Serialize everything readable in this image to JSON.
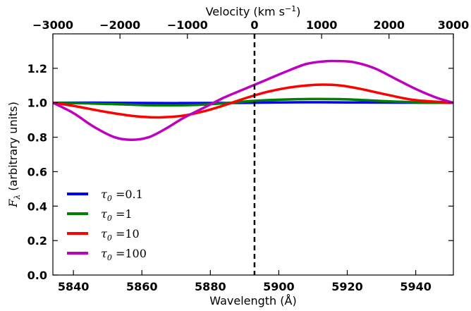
{
  "chart_data": {
    "type": "line",
    "xlabel": "Wavelength (Å)",
    "ylabel_main": "F",
    "ylabel_sub": "λ",
    "ylabel_rest": " (arbitrary units)",
    "top_xlabel": "Velocity (km s",
    "top_xlabel_sup": "−1",
    "top_xlabel_end": ")",
    "xlim": [
      5834,
      5951
    ],
    "ylim": [
      0.0,
      1.4
    ],
    "xticks": [
      "5840",
      "5860",
      "5880",
      "5900",
      "5920",
      "5940"
    ],
    "xtick_values": [
      5840,
      5860,
      5880,
      5900,
      5920,
      5940
    ],
    "yticks": [
      "0.0",
      "0.2",
      "0.4",
      "0.6",
      "0.8",
      "1.0",
      "1.2"
    ],
    "ytick_values": [
      0.0,
      0.2,
      0.4,
      0.6,
      0.8,
      1.0,
      1.2
    ],
    "top_ticks": [
      "−3000",
      "−2000",
      "−1000",
      "0",
      "1000",
      "2000",
      "3000"
    ],
    "top_tick_values": [
      -3000,
      -2000,
      -1000,
      0,
      1000,
      2000,
      3000
    ],
    "top_tick_wavelengths": [
      5834.0,
      5853.6,
      5873.3,
      5892.9,
      5912.5,
      5932.2,
      5951.8
    ],
    "rest_wavelength": 5892.9,
    "vline_style": "dashed",
    "legend_position": "lower-left",
    "series": [
      {
        "name": "τ₀ = 0.1",
        "legend_sub": "0",
        "legend_value": "0.1",
        "color": "#0000ff",
        "x": [
          5834,
          5850,
          5870,
          5884,
          5892,
          5900,
          5910,
          5920,
          5935,
          5951
        ],
        "y": [
          1.0,
          1.0,
          0.998,
          0.999,
          1.0,
          1.002,
          1.003,
          1.002,
          1.001,
          1.0
        ]
      },
      {
        "name": "τ₀ = 1",
        "legend_sub": "0",
        "legend_value": "1",
        "color": "#008000",
        "x": [
          5834,
          5845,
          5855,
          5865,
          5875,
          5884,
          5892,
          5900,
          5910,
          5920,
          5930,
          5940,
          5951
        ],
        "y": [
          1.0,
          0.996,
          0.99,
          0.985,
          0.987,
          0.997,
          1.01,
          1.018,
          1.022,
          1.02,
          1.01,
          1.003,
          1.0
        ]
      },
      {
        "name": "τ₀ = 10",
        "legend_sub": "0",
        "legend_value": "10",
        "color": "#ff0000",
        "x": [
          5834,
          5840,
          5850,
          5858,
          5865,
          5872,
          5878,
          5884,
          5890,
          5896,
          5902,
          5908,
          5913,
          5918,
          5924,
          5932,
          5940,
          5951
        ],
        "y": [
          1.0,
          0.982,
          0.945,
          0.922,
          0.915,
          0.925,
          0.95,
          0.985,
          1.025,
          1.06,
          1.085,
          1.1,
          1.105,
          1.1,
          1.08,
          1.045,
          1.015,
          1.0
        ]
      },
      {
        "name": "τ₀ = 100",
        "legend_sub": "0",
        "legend_value": "100",
        "color": "#bf00bf",
        "x": [
          5834,
          5840,
          5846,
          5852,
          5857,
          5862,
          5867,
          5872,
          5878,
          5884,
          5890,
          5896,
          5902,
          5908,
          5913,
          5917,
          5922,
          5928,
          5934,
          5940,
          5946,
          5951
        ],
        "y": [
          1.0,
          0.94,
          0.86,
          0.8,
          0.785,
          0.8,
          0.85,
          0.91,
          0.97,
          1.03,
          1.08,
          1.13,
          1.18,
          1.225,
          1.24,
          1.242,
          1.235,
          1.2,
          1.14,
          1.08,
          1.03,
          1.0
        ]
      }
    ]
  }
}
